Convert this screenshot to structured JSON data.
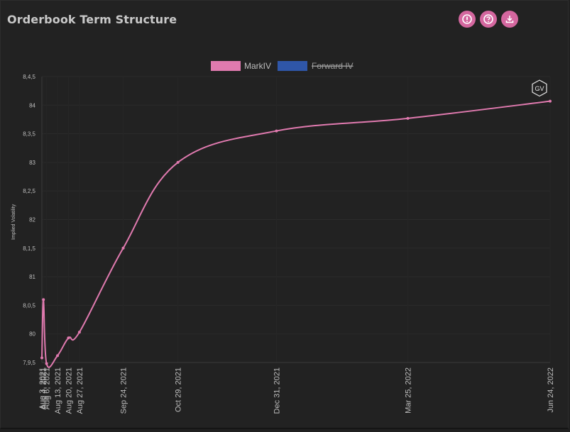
{
  "header": {
    "title": "Orderbook Term Structure"
  },
  "toolbar": {
    "buttons": [
      {
        "icon": "info-icon"
      },
      {
        "icon": "help-icon"
      },
      {
        "icon": "download-icon"
      }
    ]
  },
  "badge": {
    "text": "GV"
  },
  "chart_data": {
    "type": "line",
    "title": "",
    "xlabel": "",
    "ylabel": "Implied Volatility",
    "ylim": [
      79.5,
      84.5
    ],
    "y_tick_labels": [
      "7,9,5",
      "80",
      "8,0,5",
      "81",
      "8,1,5",
      "82",
      "8,2,5",
      "83",
      "8,3,5",
      "84",
      "8,4,5"
    ],
    "x_tick_labels": [
      "Aug 3, 2021",
      "Aug 4, 2021",
      "Aug 6, 2021",
      "Aug 13, 2021",
      "Aug 20, 2021",
      "Aug 27, 2021",
      "Sep 24, 2021",
      "Oct 29, 2021",
      "Dec 31, 2021",
      "Mar 25, 2022",
      "Jun 24, 2022"
    ],
    "legend_position": "top",
    "grid": true,
    "series": [
      {
        "name": "MarkIV",
        "color": "#e07aaf",
        "visible": true,
        "x": [
          "2021-08-03",
          "2021-08-04",
          "2021-08-06",
          "2021-08-13",
          "2021-08-20",
          "2021-08-27",
          "2021-09-24",
          "2021-10-29",
          "2021-12-31",
          "2022-03-25",
          "2022-06-24"
        ],
        "values": [
          79.58,
          80.6,
          79.48,
          79.62,
          79.93,
          80.03,
          81.5,
          83.0,
          83.55,
          83.77,
          84.07
        ]
      },
      {
        "name": "Forward IV",
        "color": "#2f56a8",
        "visible": false,
        "x": [],
        "values": []
      }
    ]
  }
}
